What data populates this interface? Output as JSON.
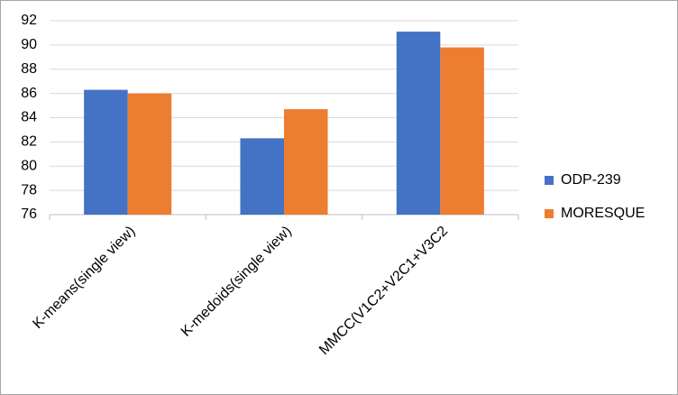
{
  "chart_data": {
    "type": "bar",
    "categories": [
      "K-means(single view)",
      "K-medoids(single view)",
      "MMCC(V1C2+V2C1+V3C2"
    ],
    "series": [
      {
        "name": "ODP-239",
        "color": "#4472c4",
        "values": [
          86.3,
          82.3,
          91.1
        ]
      },
      {
        "name": "MORESQUE",
        "color": "#ed7d31",
        "values": [
          86.0,
          84.7,
          89.8
        ]
      }
    ],
    "ylim": [
      76,
      92
    ],
    "yticks": [
      76,
      78,
      80,
      82,
      84,
      86,
      88,
      90,
      92
    ],
    "grid": true,
    "legend": "right"
  }
}
